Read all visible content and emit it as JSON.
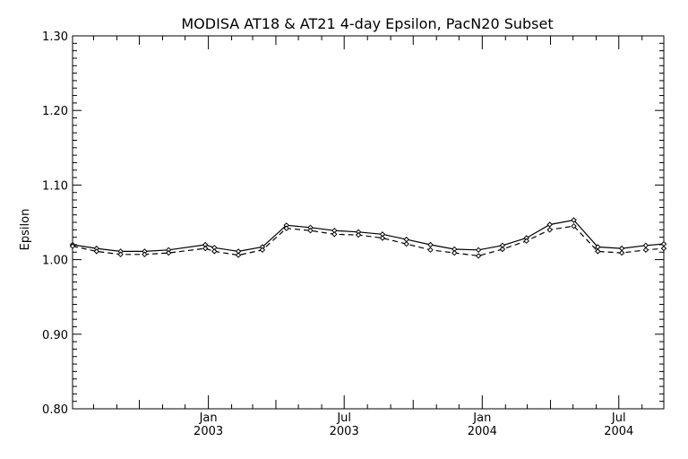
{
  "chart_data": {
    "type": "line",
    "title": "MODISA AT18 & AT21 4-day Epsilon, PacN20 Subset",
    "xlabel": "",
    "ylabel": "Epsilon",
    "xlim": [
      "2002-07-04",
      "2004-08-30"
    ],
    "ylim": [
      0.8,
      1.3
    ],
    "yticks": [
      "0.80",
      "0.90",
      "1.00",
      "1.10",
      "1.20",
      "1.30"
    ],
    "xticks": [
      {
        "date": "2003-01-01",
        "month": "Jan",
        "year": "2003"
      },
      {
        "date": "2003-07-01",
        "month": "Jul",
        "year": "2003"
      },
      {
        "date": "2004-01-01",
        "month": "Jan",
        "year": "2004"
      },
      {
        "date": "2004-07-01",
        "month": "Jul",
        "year": "2004"
      }
    ],
    "grid": false,
    "legend": "none",
    "x": [
      "2002-07-04",
      "2002-08-05",
      "2002-09-06",
      "2002-10-08",
      "2002-11-09",
      "2002-12-28",
      "2003-01-09",
      "2003-02-10",
      "2003-03-14",
      "2003-04-15",
      "2003-05-17",
      "2003-06-18",
      "2003-07-20",
      "2003-08-21",
      "2003-09-22",
      "2003-10-24",
      "2003-11-25",
      "2003-12-27",
      "2004-01-28",
      "2004-02-29",
      "2004-03-31",
      "2004-05-02",
      "2004-06-03",
      "2004-07-05",
      "2004-08-06",
      "2004-08-30"
    ],
    "series": [
      {
        "style": "solid",
        "color": "#000000",
        "values": [
          1.02,
          1.015,
          1.011,
          1.011,
          1.013,
          1.02,
          1.016,
          1.011,
          1.017,
          1.046,
          1.043,
          1.039,
          1.037,
          1.034,
          1.027,
          1.02,
          1.014,
          1.013,
          1.019,
          1.029,
          1.047,
          1.053,
          1.017,
          1.015,
          1.019,
          1.021
        ]
      },
      {
        "style": "dashed",
        "color": "#000000",
        "values": [
          1.018,
          1.011,
          1.007,
          1.007,
          1.009,
          1.015,
          1.011,
          1.006,
          1.013,
          1.042,
          1.039,
          1.034,
          1.033,
          1.029,
          1.021,
          1.013,
          1.009,
          1.005,
          1.014,
          1.025,
          1.04,
          1.045,
          1.011,
          1.009,
          1.013,
          1.015
        ]
      }
    ]
  }
}
